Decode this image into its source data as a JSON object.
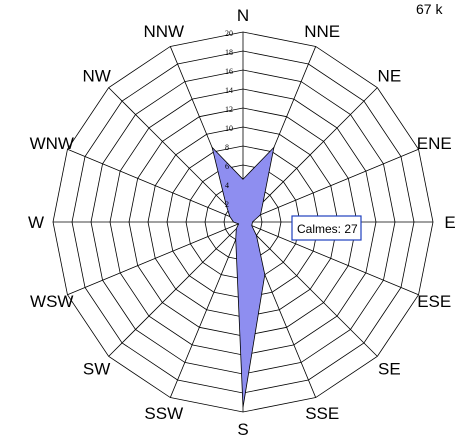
{
  "chart_data": {
    "type": "radar",
    "directions": [
      "N",
      "NNE",
      "NE",
      "ENE",
      "E",
      "ESE",
      "SE",
      "SSE",
      "S",
      "SSW",
      "SW",
      "WSW",
      "W",
      "WNW",
      "NW",
      "NNW"
    ],
    "values": [
      4.5,
      8.5,
      3.0,
      2.0,
      1.0,
      1.0,
      2.0,
      6.0,
      19.5,
      2.0,
      1.0,
      0.5,
      1.0,
      1.5,
      2.5,
      8.5
    ],
    "rlim": [
      0,
      20
    ],
    "ticks": [
      "2",
      "4",
      "6",
      "8",
      "10",
      "12",
      "14",
      "16",
      "18",
      "20"
    ],
    "series_color": "#8e8ef0",
    "grid": true,
    "calm_label": "Calmes: 27",
    "top_note": "67 k"
  }
}
